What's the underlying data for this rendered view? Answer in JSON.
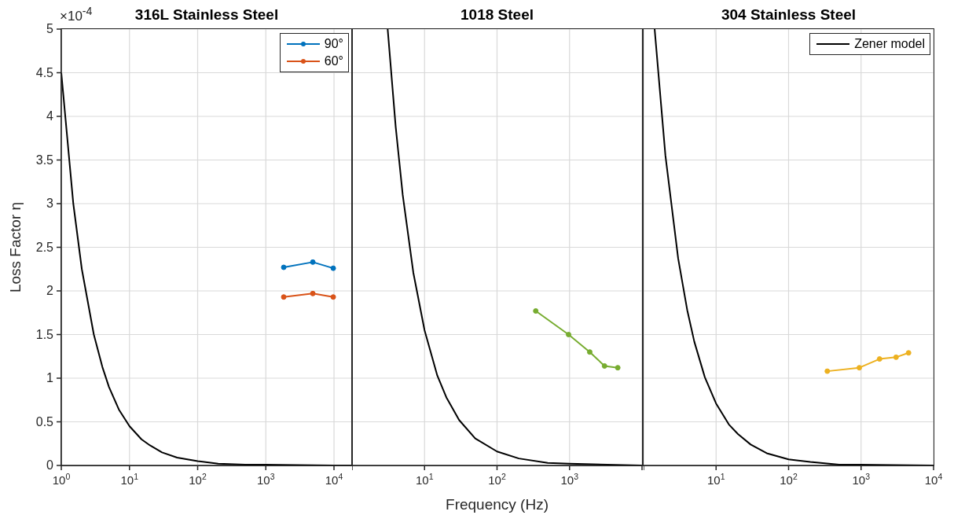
{
  "chart_data": [
    {
      "type": "line",
      "title": "316L Stainless Steel",
      "ylabel": "Loss Factor η",
      "annotations": [
        "×10$^{-4}$"
      ],
      "log": "x",
      "grid": true,
      "legend": "top right",
      "marker": "circle",
      "line_style": "solid",
      "tick_labels": "xy",
      "xlim": [
        1,
        18400
      ],
      "xticks": [
        {
          "value": 1,
          "label": "10$^{0}$"
        },
        {
          "value": 10,
          "label": "10$^{1}$"
        },
        {
          "value": 100,
          "label": "10$^{2}$"
        },
        {
          "value": 1000,
          "label": "10$^{3}$"
        },
        {
          "value": 10000,
          "label": "10$^{4}$"
        }
      ],
      "ylim": [
        0,
        5
      ],
      "yticks": [
        0,
        0.5,
        1,
        1.5,
        2,
        2.5,
        3,
        3.5,
        4,
        4.5,
        5
      ],
      "series": [
        {
          "type": "line",
          "marker": "none",
          "color": "#000000",
          "x": [
            1,
            1.5,
            2,
            3,
            4,
            5,
            7,
            10,
            15,
            20,
            30,
            50,
            100,
            200,
            500,
            1000,
            10000,
            18400
          ],
          "values": [
            4.5,
            3,
            2.25,
            1.5,
            1.13,
            0.9,
            0.64,
            0.45,
            0.3,
            0.23,
            0.15,
            0.09,
            0.05,
            0.02,
            0.01,
            0.01,
            0,
            0
          ]
        },
        {
          "name": "90°",
          "color": "#0072bd",
          "x": [
            1830,
            4890,
            9750
          ],
          "values": [
            2.27,
            2.33,
            2.26
          ]
        },
        {
          "name": "60°",
          "color": "#d95319",
          "x": [
            1830,
            4890,
            9750
          ],
          "values": [
            1.93,
            1.97,
            1.93
          ]
        }
      ]
    },
    {
      "type": "line",
      "title": "1018 Steel",
      "xlabel": "Frequency (Hz)",
      "log": "x",
      "grid": true,
      "marker": "circle",
      "line_style": "solid",
      "tick_labels": "x",
      "xlim": [
        1,
        10000
      ],
      "xticks": [
        {
          "value": 1,
          "label": null
        },
        {
          "value": 10,
          "label": "10$^{1}$"
        },
        {
          "value": 100,
          "label": "10$^{2}$"
        },
        {
          "value": 1000,
          "label": "10$^{3}$"
        },
        {
          "value": 10000,
          "label": null
        }
      ],
      "ylim": [
        0,
        5
      ],
      "yticks": [
        0,
        0.5,
        1,
        1.5,
        2,
        2.5,
        3,
        3.5,
        4,
        4.5,
        5
      ],
      "series": [
        {
          "type": "line",
          "marker": "none",
          "color": "#000000",
          "x": [
            3.1,
            4,
            5,
            7,
            10,
            15,
            20,
            30,
            50,
            100,
            200,
            500,
            1000,
            10000
          ],
          "values": [
            5,
            3.88,
            3.1,
            2.21,
            1.55,
            1.03,
            0.78,
            0.52,
            0.31,
            0.16,
            0.08,
            0.03,
            0.02,
            0
          ]
        },
        {
          "color": "#77ac30",
          "x": [
            342,
            970,
            1900,
            3040,
            4630
          ],
          "values": [
            1.77,
            1.5,
            1.3,
            1.14,
            1.12
          ]
        }
      ]
    },
    {
      "type": "line",
      "title": "304 Stainless Steel",
      "log": "x",
      "grid": true,
      "legend": "top right",
      "marker": "circle",
      "line_style": "solid",
      "tick_labels": "x",
      "xlim": [
        1,
        10000
      ],
      "xticks": [
        {
          "value": 1,
          "label": null
        },
        {
          "value": 10,
          "label": "10$^{1}$"
        },
        {
          "value": 100,
          "label": "10$^{2}$"
        },
        {
          "value": 1000,
          "label": "10$^{3}$"
        },
        {
          "value": 10000,
          "label": "10$^{4}$"
        }
      ],
      "ylim": [
        0,
        5
      ],
      "yticks": [
        0,
        0.5,
        1,
        1.5,
        2,
        2.5,
        3,
        3.5,
        4,
        4.5,
        5
      ],
      "series": [
        {
          "type": "line",
          "name": "Zener model",
          "marker": "none",
          "color": "#000000",
          "x": [
            1.42,
            2,
            3,
            4,
            5,
            7,
            10,
            15,
            20,
            30,
            50,
            100,
            200,
            500,
            1000,
            10000
          ],
          "values": [
            5,
            3.55,
            2.37,
            1.78,
            1.42,
            1.01,
            0.71,
            0.47,
            0.36,
            0.24,
            0.14,
            0.07,
            0.04,
            0.01,
            0.01,
            0
          ]
        },
        {
          "color": "#edb120",
          "x": [
            342,
            946,
            1800,
            3040,
            4520
          ],
          "values": [
            1.08,
            1.12,
            1.22,
            1.24,
            1.29
          ]
        }
      ]
    }
  ]
}
